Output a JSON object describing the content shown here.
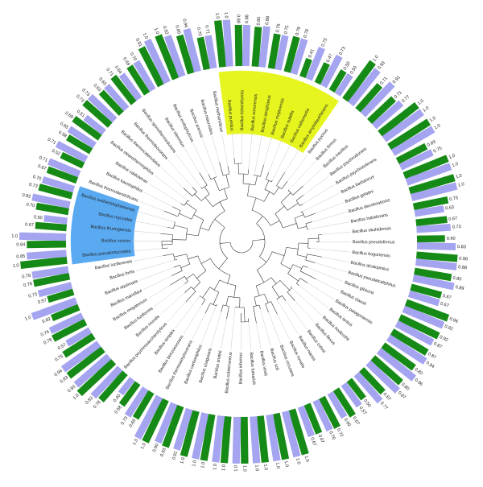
{
  "chart_data": {
    "type": "radial-bar",
    "categories": [
      "Bacillus pumilus",
      "Bacillus licheniformis",
      "Bacillus sonorensis",
      "Bacillus atrophaeus",
      "Bacillus mojavensis",
      "Bacillus subtilis",
      "Bacillus vallismortis",
      "Bacillus amyloliquefaciens",
      "Bacillus pycnus",
      "Bacillus firmus",
      "Bacillus insolitus",
      "Bacillus psychrodurans",
      "Bacillus psychrotolerans",
      "Bacillus barbaricus",
      "Bacillus gelatini",
      "Bacillus decolorationis",
      "Bacillus halodurans",
      "Bacillus okuhidensis",
      "Bacillus pseudofirmus",
      "Bacillus bogoriensis",
      "Bacillus alcalophilus",
      "Bacillus pseudalcaliphilus",
      "Bacillus gibsonii",
      "Bacillus clausii",
      "Bacillus patagoniensis",
      "Bacillus lentus",
      "Bacillus horikoshii",
      "Bacillus flexus",
      "Bacillus cohnii",
      "Bacillus niacini",
      "Bacillus novalis",
      "Bacillus circulans",
      "Bacillus soli",
      "Bacillus vireti",
      "Bacillus fumarioli",
      "Bacillus infernus",
      "Bacillus subterraneus",
      "Bacillus smithii",
      "Bacillus coagulans",
      "Bacillus carboniphilus",
      "Bacillus thermoamylovorans",
      "Bacillus benzoevorans",
      "Bacillus simplex",
      "Bacillus psychrosaccharolyticus",
      "Bacillus muralis",
      "Bacillus fusiformis",
      "Bacillus megaterium",
      "Bacillus marisflavi",
      "Bacillus aquimaris",
      "Bacillus fortis",
      "Bacillus luciferensis",
      "Bacillus pseudomycoides",
      "Bacillus cereus",
      "Bacillus thuringiensis",
      "Bacillus mycoides",
      "Bacillus weihenstephanensis",
      "Bacillus thermodenitrificans",
      "Bacillus kaustophilus",
      "Bacillus caldotenax",
      "Bacillus stearothermophilus",
      "Bacillus thermocatenulatus",
      "Bacillus thermoleovorans",
      "Bacillus sporothermodurans",
      "Bacillus oleronius",
      "Bacillus endophyticus",
      "Bacillus arenosi",
      "Bacillus macroides",
      "Bacillus methanolicus"
    ],
    "series": [
      {
        "color": "#168a16",
        "values": [
          1,
          0.88,
          0.85,
          0.75,
          0.78,
          0.41,
          0.47,
          0.5,
          1,
          0.71,
          0.71,
          1,
          1,
          0.69,
          1,
          1,
          0.75,
          0.67,
          0.6,
          0.88,
          0.8,
          0.67,
          0.96,
          0.92,
          0.87,
          0.82,
          0.8,
          0.67,
          0.5,
          0.67,
          0.72,
          0.67,
          1,
          1,
          1,
          1,
          1,
          1,
          1,
          0.93,
          1,
          0.65,
          0.58,
          0.78,
          1,
          0.93,
          0.75,
          0.78,
          0.62,
          0.57,
          0.78,
          1,
          0.84,
          0.67,
          0.7,
          0.73,
          0.67,
          0.52,
          0.58,
          0.69,
          0.73,
          0.63,
          0.71,
          0.69,
          0.91,
          1,
          0.85,
          0.7
        ],
        "value_labels": [
          "1.0",
          "0.88",
          "0.85",
          "0.75",
          "0.78",
          "0.41",
          "0.47",
          "0.50",
          "1.0",
          "0.71",
          "0.71",
          "1.0",
          "1.0",
          "0.69",
          "1.0",
          "1.0",
          "0.75",
          "0.67",
          "0.60",
          "0.88",
          "0.80",
          "0.67",
          "0.96",
          "0.92",
          "0.87",
          "0.82",
          "0.80",
          "0.67",
          "0.50",
          "0.67",
          "0.72",
          "0.67",
          "1.0",
          "1.0",
          "1.0",
          "1.0",
          "1.0",
          "1.0",
          "1.0",
          "0.93",
          "1.0",
          "0.65",
          "0.58",
          "0.78",
          "1.0",
          "0.93",
          "0.75",
          "0.78",
          "0.62",
          "0.57",
          "0.78",
          "1.0",
          "0.84",
          "0.67",
          "0.70",
          "0.73",
          "0.67",
          "0.52",
          "0.58",
          "0.69",
          "0.73",
          "0.63",
          "0.71",
          "0.69",
          "0.91",
          "1.0",
          "0.85",
          "0.70"
        ]
      },
      {
        "color": "#a4a4f0",
        "values": [
          1,
          0.88,
          0.88,
          0.75,
          0.78,
          0.73,
          0.73,
          0.5,
          0.93,
          0.91,
          0.77,
          1,
          1,
          0.75,
          1,
          1,
          0.63,
          0.73,
          0.83,
          0.88,
          0.89,
          0.67,
          0.92,
          0.87,
          0.94,
          0.96,
          0.87,
          0.77,
          0.57,
          0.6,
          0.7,
          0.67,
          1,
          1,
          1,
          1,
          1,
          1,
          0.91,
          0.9,
          1,
          0.7,
          0.4,
          0.83,
          0.93,
          0.94,
          0.57,
          0.76,
          1,
          0.73,
          0.78,
          0.85,
          1,
          0.5,
          0.82,
          0.7,
          0.71,
          0.71,
          0.65,
          0.51,
          0.73,
          0.65,
          0.64,
          0.7,
          1,
          0.92,
          0.94,
          0.71
        ],
        "value_labels": [
          "1.0",
          "0.88",
          "0.88",
          "0.75",
          "0.78",
          "0.73",
          "0.73",
          "0.50",
          "0.93",
          "0.91",
          "0.77",
          "1.0",
          "1.0",
          "0.75",
          "1.0",
          "1.0",
          "0.63",
          "0.73",
          "0.83",
          "0.88",
          "0.89",
          "0.67",
          "0.92",
          "0.87",
          "0.94",
          "0.96",
          "0.87",
          "0.77",
          "0.57",
          "0.60",
          "0.70",
          "0.67",
          "1.0",
          "1.0",
          "1.0",
          "1.0",
          "1.0",
          "1.0",
          "0.91",
          "0.90",
          "1.0",
          "0.70",
          "0.40",
          "0.83",
          "0.93",
          "0.94",
          "0.57",
          "0.76",
          "1.0",
          "0.73",
          "0.78",
          "0.85",
          "1.0",
          "0.50",
          "0.82",
          "0.70",
          "0.71",
          "0.71",
          "0.65",
          "0.51",
          "0.73",
          "0.65",
          "0.64",
          "0.70",
          "1.0",
          "0.92",
          "0.94",
          "0.71"
        ]
      }
    ],
    "ylim": [
      0,
      1
    ],
    "highlights": [
      {
        "color": "#e6f51e",
        "categories": [
          "Bacillus pumilus",
          "Bacillus licheniformis",
          "Bacillus sonorensis",
          "Bacillus atrophaeus",
          "Bacillus mojavensis",
          "Bacillus subtilis",
          "Bacillus vallismortis",
          "Bacillus amyloliquefaciens"
        ]
      },
      {
        "color": "#5aaaf2",
        "categories": [
          "Bacillus pseudomycoides",
          "Bacillus cereus",
          "Bacillus thuringiensis",
          "Bacillus mycoides",
          "Bacillus weihenstephanensis"
        ]
      }
    ]
  }
}
